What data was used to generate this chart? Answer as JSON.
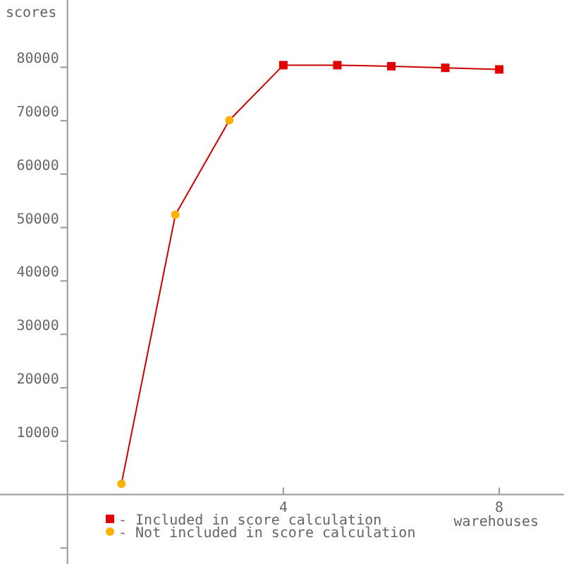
{
  "chart_data": {
    "type": "line",
    "xlabel": "warehouses",
    "ylabel": "scores",
    "xlim": [
      -1.25,
      9.2
    ],
    "ylim": [
      -13000,
      92600
    ],
    "xticks": [
      4,
      8
    ],
    "yticks": [
      {
        "value": -10000,
        "label": null
      },
      10000,
      20000,
      30000,
      40000,
      50000,
      60000,
      70000,
      80000
    ],
    "legend": "bottom left",
    "grid": false,
    "series": [
      {
        "color": "#cc0000",
        "marker": "none",
        "x": [
          1,
          2,
          3,
          4,
          5,
          6,
          7,
          8
        ],
        "values": [
          2000,
          52400,
          70100,
          80400,
          80400,
          80200,
          79900,
          79600
        ]
      },
      {
        "type": "scatter",
        "name": "- Included in score calculation",
        "color": "#e00000",
        "marker": "square",
        "x": [
          4,
          5,
          6,
          7,
          8
        ],
        "values": [
          80400,
          80400,
          80200,
          79900,
          79600
        ]
      },
      {
        "type": "scatter",
        "name": "- Not included in score calculation",
        "color": "#ffb000",
        "marker": "circle",
        "x": [
          1,
          2,
          3
        ],
        "values": [
          2000,
          52400,
          70100
        ]
      }
    ]
  }
}
